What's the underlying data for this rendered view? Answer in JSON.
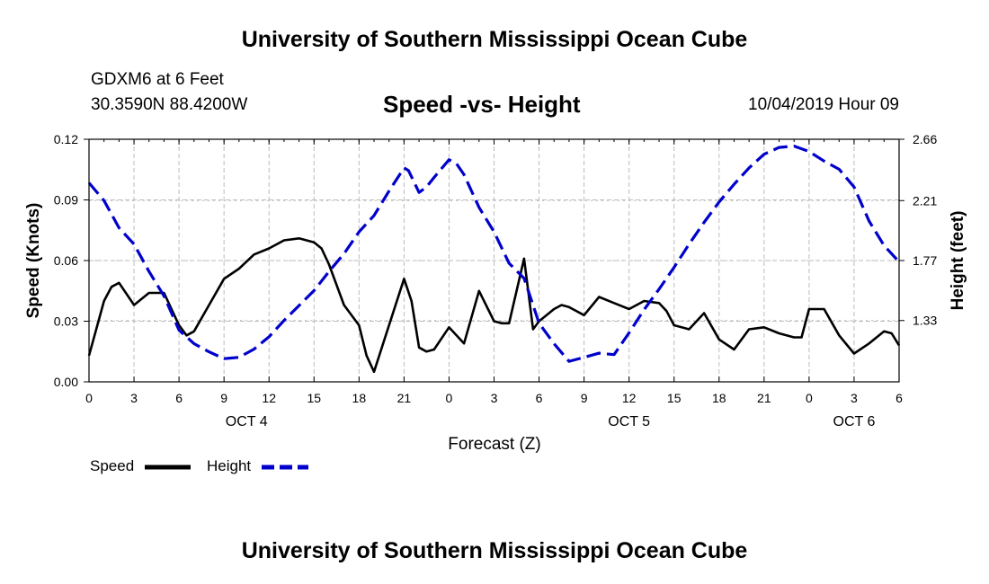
{
  "header": {
    "title": "University of Southern Mississippi Ocean Cube",
    "station": "GDXM6 at 6 Feet",
    "coords": "30.3590N 88.4200W",
    "subtitle": "Speed -vs- Height",
    "datetime": "10/04/2019 Hour 09"
  },
  "footer": {
    "title": "University of Southern Mississippi Ocean Cube"
  },
  "colors": {
    "speed": "#000000",
    "height": "#0000cc",
    "grid": "#bbbbbb"
  },
  "chart_data": {
    "type": "line",
    "title": "Speed -vs- Height",
    "xlabel": "Forecast (Z)",
    "ylabel": "Speed (Knots)",
    "y2label": "Height (feet)",
    "x_range": [
      0,
      54
    ],
    "xticks": [
      0,
      3,
      6,
      9,
      12,
      15,
      18,
      21,
      24,
      27,
      30,
      33,
      36,
      39,
      42,
      45,
      48,
      51,
      54
    ],
    "xtick_labels": [
      "0",
      "3",
      "6",
      "9",
      "12",
      "15",
      "18",
      "21",
      "0",
      "3",
      "6",
      "9",
      "12",
      "15",
      "18",
      "21",
      "0",
      "3",
      "6"
    ],
    "date_labels": [
      {
        "x": 10.5,
        "label": "OCT 4"
      },
      {
        "x": 36,
        "label": "OCT 5"
      },
      {
        "x": 51,
        "label": "OCT 6"
      }
    ],
    "ylim": [
      0,
      0.12
    ],
    "yticks": [
      0.0,
      0.03,
      0.06,
      0.09,
      0.12
    ],
    "ytick_labels": [
      "0.00",
      "0.03",
      "0.06",
      "0.09",
      "0.12"
    ],
    "y2lim": [
      0.88,
      2.66
    ],
    "y2ticks": [
      1.33,
      1.77,
      2.21,
      2.66
    ],
    "y2tick_labels": [
      "1.33",
      "1.77",
      "2.21",
      "2.66"
    ],
    "grid": true,
    "series": [
      {
        "name": "Speed",
        "axis": "left",
        "style": "solid",
        "x": [
          0,
          1,
          1.5,
          2,
          3,
          4,
          5,
          6,
          6.5,
          7,
          8,
          9,
          10,
          11,
          12,
          13,
          14,
          15,
          15.5,
          16,
          17,
          18,
          18.5,
          19,
          20,
          21,
          21.5,
          22,
          22.5,
          23,
          24,
          25,
          26,
          27,
          27.5,
          28,
          29,
          29.6,
          30,
          31,
          31.5,
          32,
          33,
          34,
          35,
          36,
          37,
          38,
          38.5,
          39,
          40,
          41,
          42,
          43,
          44,
          45,
          46,
          47,
          47.5,
          48,
          49,
          50,
          51,
          52,
          53,
          53.5,
          54
        ],
        "values": [
          0.013,
          0.04,
          0.047,
          0.049,
          0.038,
          0.044,
          0.044,
          0.028,
          0.023,
          0.025,
          0.038,
          0.051,
          0.056,
          0.063,
          0.066,
          0.07,
          0.071,
          0.069,
          0.066,
          0.058,
          0.038,
          0.028,
          0.013,
          0.005,
          0.028,
          0.051,
          0.04,
          0.017,
          0.015,
          0.016,
          0.027,
          0.019,
          0.045,
          0.03,
          0.029,
          0.029,
          0.061,
          0.026,
          0.03,
          0.036,
          0.038,
          0.037,
          0.033,
          0.042,
          0.039,
          0.036,
          0.04,
          0.039,
          0.035,
          0.028,
          0.026,
          0.034,
          0.021,
          0.016,
          0.026,
          0.027,
          0.024,
          0.022,
          0.022,
          0.036,
          0.036,
          0.023,
          0.014,
          0.019,
          0.025,
          0.024,
          0.018
        ]
      },
      {
        "name": "Height",
        "axis": "right",
        "style": "dashed",
        "x": [
          0,
          1,
          2,
          3,
          4,
          5,
          6,
          7,
          8,
          9,
          10,
          11,
          12,
          13,
          14,
          15,
          16,
          17,
          18,
          19,
          20,
          21,
          21.3,
          22,
          22.5,
          23,
          24,
          24.5,
          25,
          26,
          27,
          28,
          29,
          30,
          31,
          32,
          33,
          34,
          35,
          36,
          37,
          38,
          39,
          40,
          41,
          42,
          43,
          44,
          45,
          46,
          47,
          48,
          49,
          50,
          51,
          52,
          53,
          54
        ],
        "values": [
          2.34,
          2.21,
          2.01,
          1.89,
          1.69,
          1.51,
          1.26,
          1.16,
          1.1,
          1.05,
          1.06,
          1.12,
          1.21,
          1.33,
          1.44,
          1.55,
          1.69,
          1.82,
          1.98,
          2.1,
          2.28,
          2.45,
          2.43,
          2.27,
          2.31,
          2.38,
          2.51,
          2.48,
          2.4,
          2.16,
          1.98,
          1.75,
          1.64,
          1.31,
          1.16,
          1.03,
          1.06,
          1.09,
          1.08,
          1.24,
          1.41,
          1.56,
          1.72,
          1.89,
          2.05,
          2.2,
          2.33,
          2.45,
          2.55,
          2.6,
          2.61,
          2.57,
          2.5,
          2.44,
          2.31,
          2.06,
          1.88,
          1.76
        ]
      }
    ]
  },
  "legend": {
    "speed": "Speed",
    "height": "Height"
  }
}
